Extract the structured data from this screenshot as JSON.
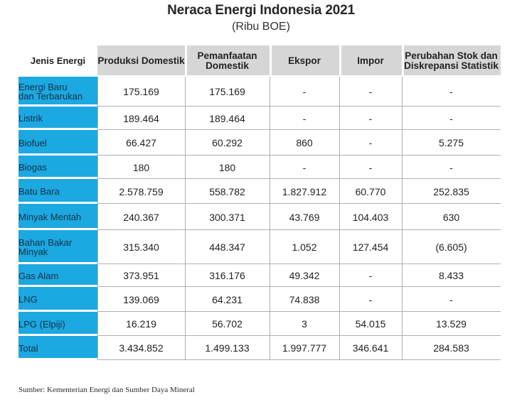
{
  "chart_data": {
    "type": "table",
    "title": "Neraca Energi Indonesia 2021",
    "subtitle": "(Ribu BOE)",
    "columns": [
      "Jenis Energi",
      "Produksi Domestik",
      "Pemanfaatan Domestik",
      "Ekspor",
      "Impor",
      "Perubahan Stok dan Diskrepansi Statistik"
    ],
    "rows": [
      {
        "label": "Energi Baru dan Terbarukan",
        "values": [
          "175.169",
          "175.169",
          "-",
          "-",
          "-"
        ]
      },
      {
        "label": "Listrik",
        "values": [
          "189.464",
          "189.464",
          "-",
          "-",
          "-"
        ]
      },
      {
        "label": "Biofuel",
        "values": [
          "66.427",
          "60.292",
          "860",
          "-",
          "5.275"
        ]
      },
      {
        "label": "Biogas",
        "values": [
          "180",
          "180",
          "-",
          "-",
          "-"
        ]
      },
      {
        "label": "Batu Bara",
        "values": [
          "2.578.759",
          "558.782",
          "1.827.912",
          "60.770",
          "252.835"
        ]
      },
      {
        "label": "Minyak Mentah",
        "values": [
          "240.367",
          "300.371",
          "43.769",
          "104.403",
          "630"
        ]
      },
      {
        "label": "Bahan Bakar Minyak",
        "values": [
          "315.340",
          "448.347",
          "1.052",
          "127.454",
          "(6.605)"
        ]
      },
      {
        "label": "Gas Alam",
        "values": [
          "373.951",
          "316.176",
          "49.342",
          "-",
          "8.433"
        ]
      },
      {
        "label": "LNG",
        "values": [
          "139.069",
          "64.231",
          "74.838",
          "-",
          "-"
        ]
      },
      {
        "label": "LPG (Elpiji)",
        "values": [
          "16.219",
          "56.702",
          "3",
          "54.015",
          "13.529"
        ]
      },
      {
        "label": "Total",
        "values": [
          "3.434.852",
          "1.499.133",
          "1.997.777",
          "346.641",
          "284.583"
        ]
      }
    ],
    "source": "Sumber: Kementerian Energi dan Sumber Daya Mineral",
    "colors": {
      "row_label_bg": "#1ca8e0",
      "header_bg": "#d6d6d6",
      "row_label_text": "#14324a"
    }
  }
}
